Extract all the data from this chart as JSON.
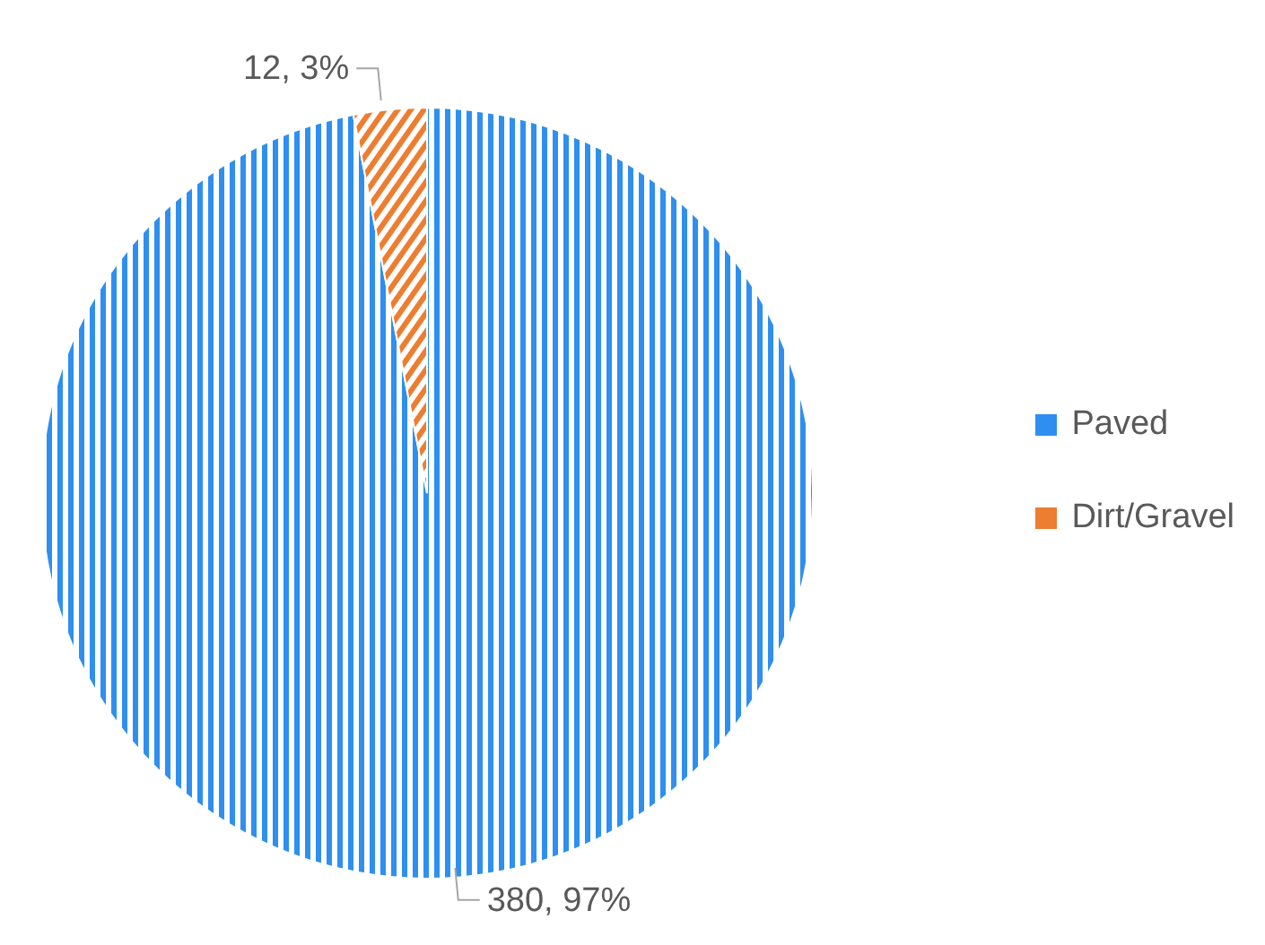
{
  "chart_data": {
    "type": "pie",
    "categories": [
      "Paved",
      "Dirt/Gravel"
    ],
    "values": [
      380,
      12
    ],
    "colors": [
      "#2e8ff0",
      "#ed7d31"
    ],
    "value_labels": [
      "380, 97%",
      "12, 3%"
    ],
    "legend": "right"
  }
}
